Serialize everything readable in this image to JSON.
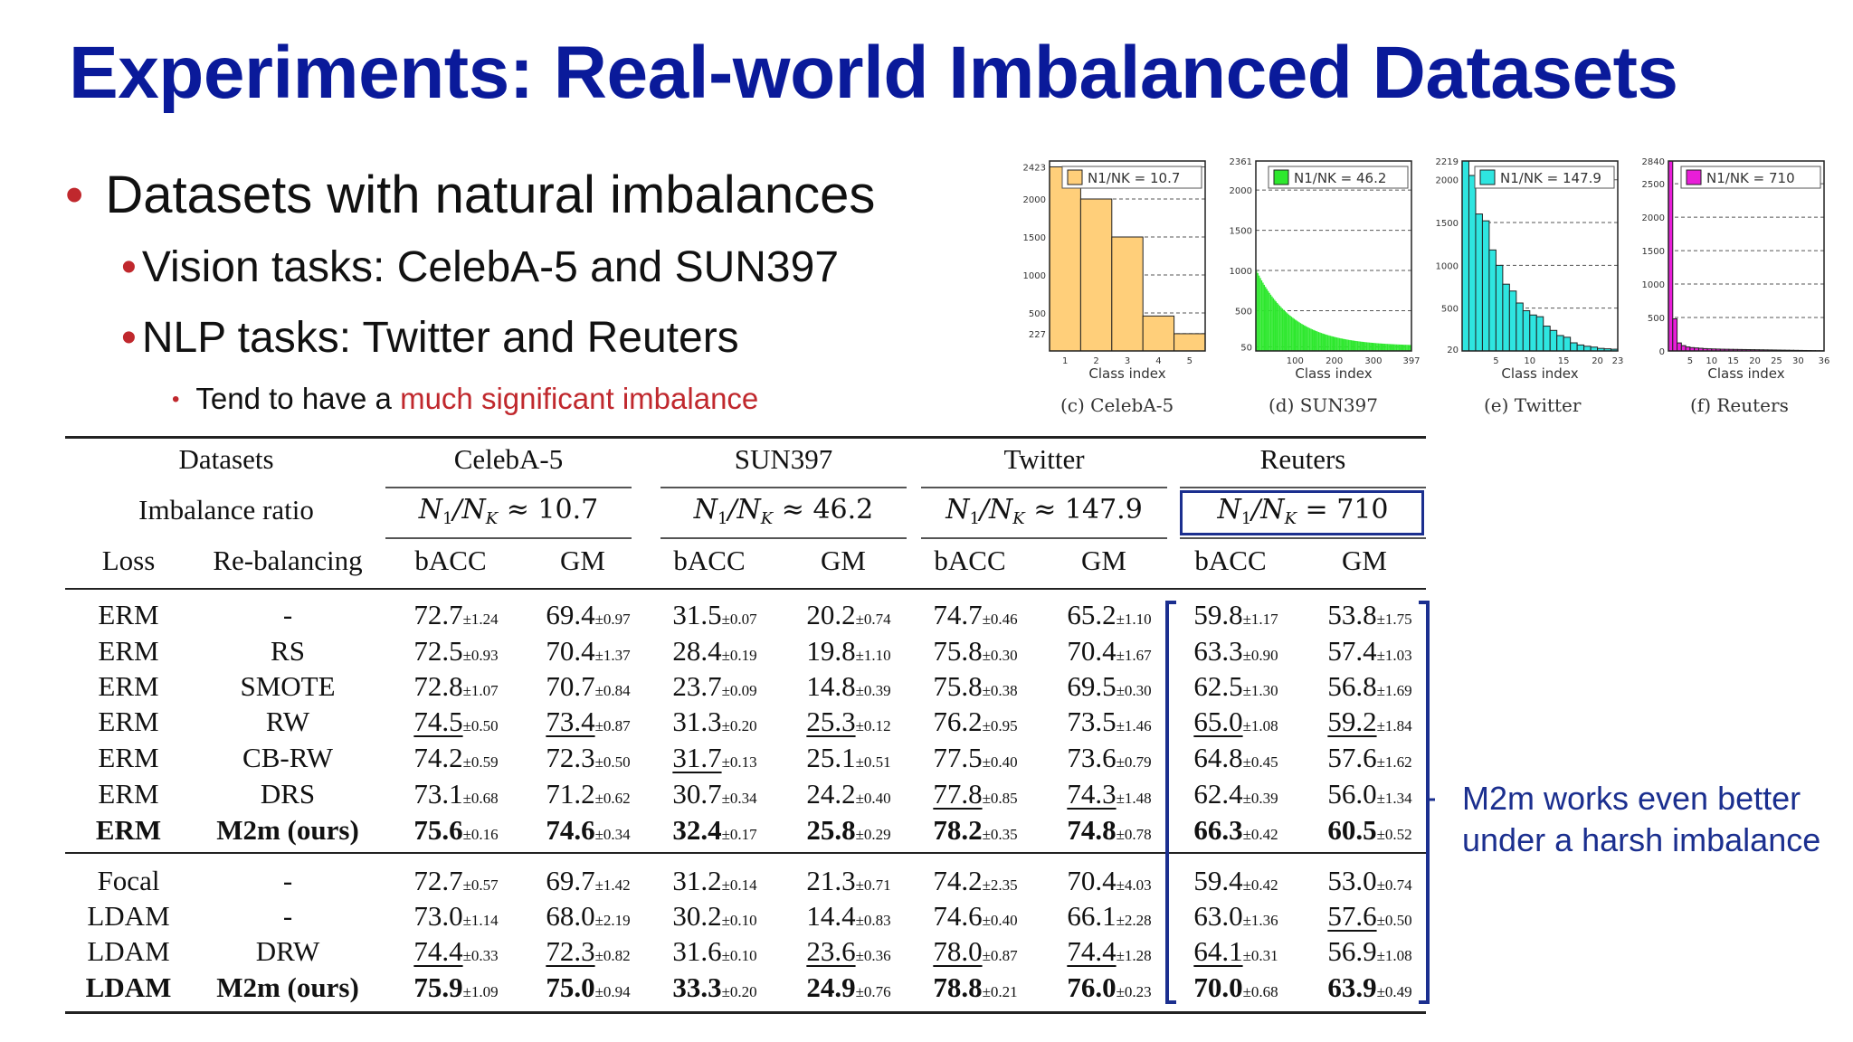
{
  "title": "Experiments: Real-world Imbalanced Datasets",
  "bullets": {
    "main": "Datasets with natural imbalances",
    "vision": "Vision tasks: CelebA-5 and SUN397",
    "nlp": "NLP tasks: Twitter and Reuters",
    "note_prefix": "Tend to have a ",
    "note_highlight": "much significant imbalance"
  },
  "colors": {
    "title": "#0a1a9a",
    "bullet_dot": "#c0282d",
    "highlight": "#c0282d",
    "annotation": "#1b2f8f"
  },
  "histograms": [
    {
      "id": "celeba",
      "caption": "(c) CelebA-5",
      "legend": "N1/NK = 10.7",
      "color": "#ffcf7a",
      "xlabel": "Class index",
      "yticks": [
        "2423",
        "2000",
        "1500",
        "1000",
        "500",
        "227"
      ],
      "xticks": [
        "1",
        "2",
        "3",
        "4",
        "5"
      ],
      "values": [
        2423,
        2000,
        1500,
        460,
        227
      ],
      "ymax": 2500
    },
    {
      "id": "sun",
      "caption": "(d) SUN397",
      "legend": "N1/NK = 46.2",
      "color": "#2ee82e",
      "xlabel": "Class index",
      "yticks": [
        "2361",
        "2000",
        "1500",
        "1000",
        "500",
        "50"
      ],
      "xticks": [
        "100",
        "200",
        "300",
        "397"
      ],
      "ymax": 2361
    },
    {
      "id": "twitter",
      "caption": "(e) Twitter",
      "legend": "N1/NK = 147.9",
      "color": "#2ee5e0",
      "xlabel": "Class index",
      "yticks": [
        "2219",
        "2000",
        "1500",
        "1000",
        "500",
        "20"
      ],
      "xticks": [
        "5",
        "10",
        "15",
        "20",
        "23"
      ],
      "ymax": 2219
    },
    {
      "id": "reuters",
      "caption": "(f) Reuters",
      "legend": "N1/NK = 710",
      "color": "#e81ed8",
      "xlabel": "Class index",
      "yticks": [
        "2840",
        "2500",
        "2000",
        "1500",
        "1000",
        "500",
        "0"
      ],
      "xticks": [
        "5",
        "10",
        "15",
        "20",
        "25",
        "30",
        "36"
      ],
      "ymax": 2840
    }
  ],
  "table": {
    "h_datasets": "Datasets",
    "h_imbalance": "Imbalance ratio",
    "h_loss": "Loss",
    "h_rebal": "Re-balancing",
    "datasets": [
      "CelebA-5",
      "SUN397",
      "Twitter",
      "Reuters"
    ],
    "ratios": [
      "10.7",
      "46.2",
      "147.9",
      "710"
    ],
    "metric_bacc": "bACC",
    "metric_gm": "GM",
    "rows": [
      {
        "loss": "ERM",
        "rebal": "-",
        "bold": false,
        "cells": [
          [
            "72.7",
            "±1.24"
          ],
          [
            "69.4",
            "±0.97"
          ],
          [
            "31.5",
            "±0.07"
          ],
          [
            "20.2",
            "±0.74"
          ],
          [
            "74.7",
            "±0.46"
          ],
          [
            "65.2",
            "±1.10"
          ],
          [
            "59.8",
            "±1.17"
          ],
          [
            "53.8",
            "±1.75"
          ]
        ],
        "u": []
      },
      {
        "loss": "ERM",
        "rebal": "RS",
        "bold": false,
        "cells": [
          [
            "72.5",
            "±0.93"
          ],
          [
            "70.4",
            "±1.37"
          ],
          [
            "28.4",
            "±0.19"
          ],
          [
            "19.8",
            "±1.10"
          ],
          [
            "75.8",
            "±0.30"
          ],
          [
            "70.4",
            "±1.67"
          ],
          [
            "63.3",
            "±0.90"
          ],
          [
            "57.4",
            "±1.03"
          ]
        ],
        "u": []
      },
      {
        "loss": "ERM",
        "rebal": "SMOTE",
        "bold": false,
        "cells": [
          [
            "72.8",
            "±1.07"
          ],
          [
            "70.7",
            "±0.84"
          ],
          [
            "23.7",
            "±0.09"
          ],
          [
            "14.8",
            "±0.39"
          ],
          [
            "75.8",
            "±0.38"
          ],
          [
            "69.5",
            "±0.30"
          ],
          [
            "62.5",
            "±1.30"
          ],
          [
            "56.8",
            "±1.69"
          ]
        ],
        "u": []
      },
      {
        "loss": "ERM",
        "rebal": "RW",
        "bold": false,
        "cells": [
          [
            "74.5",
            "±0.50"
          ],
          [
            "73.4",
            "±0.87"
          ],
          [
            "31.3",
            "±0.20"
          ],
          [
            "25.3",
            "±0.12"
          ],
          [
            "76.2",
            "±0.95"
          ],
          [
            "73.5",
            "±1.46"
          ],
          [
            "65.0",
            "±1.08"
          ],
          [
            "59.2",
            "±1.84"
          ]
        ],
        "u": [
          0,
          1,
          3,
          6,
          7
        ]
      },
      {
        "loss": "ERM",
        "rebal": "CB-RW",
        "bold": false,
        "cells": [
          [
            "74.2",
            "±0.59"
          ],
          [
            "72.3",
            "±0.50"
          ],
          [
            "31.7",
            "±0.13"
          ],
          [
            "25.1",
            "±0.51"
          ],
          [
            "77.5",
            "±0.40"
          ],
          [
            "73.6",
            "±0.79"
          ],
          [
            "64.8",
            "±0.45"
          ],
          [
            "57.6",
            "±1.62"
          ]
        ],
        "u": [
          2
        ]
      },
      {
        "loss": "ERM",
        "rebal": "DRS",
        "bold": false,
        "cells": [
          [
            "73.1",
            "±0.68"
          ],
          [
            "71.2",
            "±0.62"
          ],
          [
            "30.7",
            "±0.34"
          ],
          [
            "24.2",
            "±0.40"
          ],
          [
            "77.8",
            "±0.85"
          ],
          [
            "74.3",
            "±1.48"
          ],
          [
            "62.4",
            "±0.39"
          ],
          [
            "56.0",
            "±1.34"
          ]
        ],
        "u": [
          4,
          5
        ]
      },
      {
        "loss": "ERM",
        "rebal": "M2m (ours)",
        "bold": true,
        "cells": [
          [
            "75.6",
            "±0.16"
          ],
          [
            "74.6",
            "±0.34"
          ],
          [
            "32.4",
            "±0.17"
          ],
          [
            "25.8",
            "±0.29"
          ],
          [
            "78.2",
            "±0.35"
          ],
          [
            "74.8",
            "±0.78"
          ],
          [
            "66.3",
            "±0.42"
          ],
          [
            "60.5",
            "±0.52"
          ]
        ],
        "u": []
      },
      {
        "loss": "Focal",
        "rebal": "-",
        "bold": false,
        "cells": [
          [
            "72.7",
            "±0.57"
          ],
          [
            "69.7",
            "±1.42"
          ],
          [
            "31.2",
            "±0.14"
          ],
          [
            "21.3",
            "±0.71"
          ],
          [
            "74.2",
            "±2.35"
          ],
          [
            "70.4",
            "±4.03"
          ],
          [
            "59.4",
            "±0.42"
          ],
          [
            "53.0",
            "±0.74"
          ]
        ],
        "u": []
      },
      {
        "loss": "LDAM",
        "rebal": "-",
        "bold": false,
        "cells": [
          [
            "73.0",
            "±1.14"
          ],
          [
            "68.0",
            "±2.19"
          ],
          [
            "30.2",
            "±0.10"
          ],
          [
            "14.4",
            "±0.83"
          ],
          [
            "74.6",
            "±0.40"
          ],
          [
            "66.1",
            "±2.28"
          ],
          [
            "63.0",
            "±1.36"
          ],
          [
            "57.6",
            "±0.50"
          ]
        ],
        "u": [
          7
        ]
      },
      {
        "loss": "LDAM",
        "rebal": "DRW",
        "bold": false,
        "cells": [
          [
            "74.4",
            "±0.33"
          ],
          [
            "72.3",
            "±0.82"
          ],
          [
            "31.6",
            "±0.10"
          ],
          [
            "23.6",
            "±0.36"
          ],
          [
            "78.0",
            "±0.87"
          ],
          [
            "74.4",
            "±1.28"
          ],
          [
            "64.1",
            "±0.31"
          ],
          [
            "56.9",
            "±1.08"
          ]
        ],
        "u": [
          0,
          1,
          3,
          4,
          5,
          6
        ]
      },
      {
        "loss": "LDAM",
        "rebal": "M2m (ours)",
        "bold": true,
        "cells": [
          [
            "75.9",
            "±1.09"
          ],
          [
            "75.0",
            "±0.94"
          ],
          [
            "33.3",
            "±0.20"
          ],
          [
            "24.9",
            "±0.76"
          ],
          [
            "78.8",
            "±0.21"
          ],
          [
            "76.0",
            "±0.23"
          ],
          [
            "70.0",
            "±0.68"
          ],
          [
            "63.9",
            "±0.49"
          ]
        ],
        "u": []
      }
    ]
  },
  "annotation": {
    "line1": "M2m works even better",
    "line2": "under a harsh imbalance"
  }
}
